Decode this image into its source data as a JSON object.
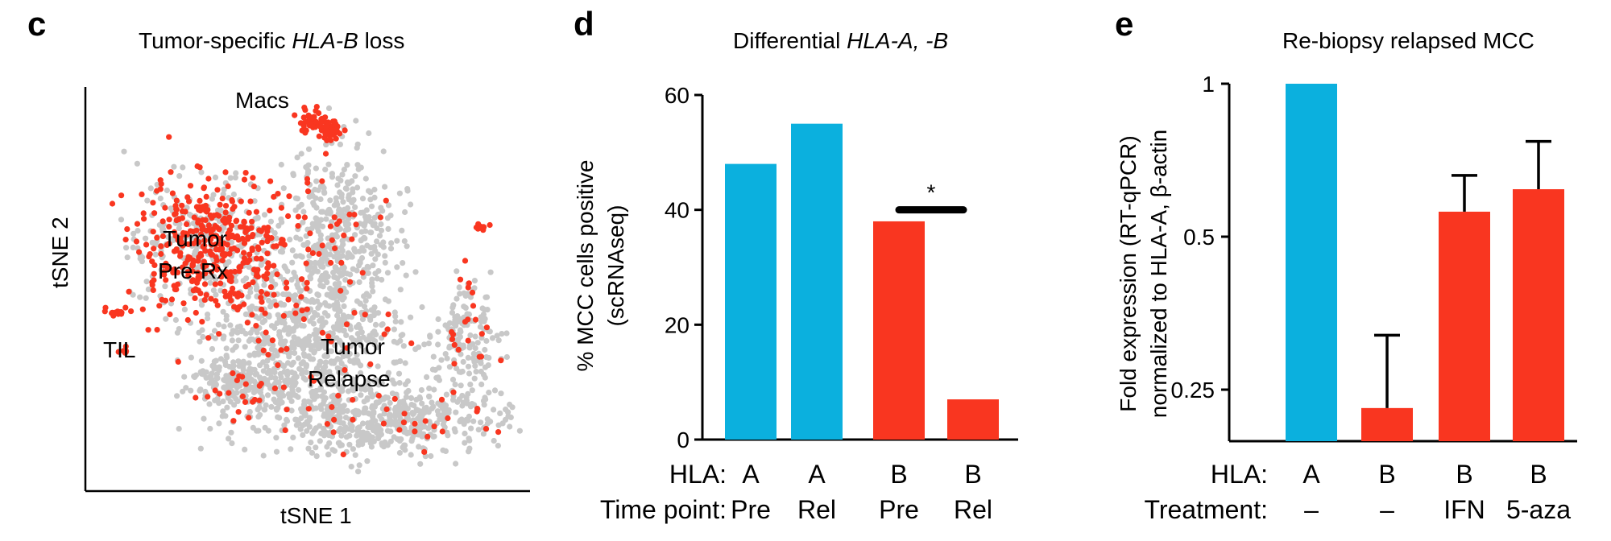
{
  "colors": {
    "blue": "#0bb0de",
    "red": "#f93620",
    "grey": "#c8c8c8",
    "axis": "#000000"
  },
  "panel_c": {
    "letter": "c",
    "title_prefix": "Tumor-specific ",
    "title_italic": "HLA-B",
    "title_suffix": " loss",
    "xlabel": "tSNE 1",
    "ylabel": "tSNE 2",
    "clusters": {
      "macs": "Macs",
      "tumor_pre_1": "Tumor",
      "tumor_pre_2": "Pre-Rx",
      "til": "TIL",
      "tumor_rel_1": "Tumor",
      "tumor_rel_2": "Relapse"
    }
  },
  "panel_d": {
    "letter": "d",
    "title_prefix": "Differential ",
    "title_italic": "HLA-A, -B",
    "ylabel_line1": "% MCC cells positive",
    "ylabel_line2": "(scRNAseq)",
    "row1_label": "HLA:",
    "row2_label": "Time point:",
    "significance": "*"
  },
  "panel_e": {
    "letter": "e",
    "title": "Re-biopsy relapsed MCC",
    "ylabel_line1": "Fold expression (RT-qPCR)",
    "ylabel_line2": "normalized to HLA-A, β-actin",
    "row1_label": "HLA:",
    "row2_label": "Treatment:"
  },
  "chart_data": [
    {
      "type": "scatter",
      "title": "Tumor-specific HLA-B loss",
      "xlabel": "tSNE 1",
      "ylabel": "tSNE 2",
      "series": [],
      "annotations": [
        "Macs",
        "Tumor Pre-Rx",
        "TIL",
        "Tumor Relapse"
      ]
    },
    {
      "type": "bar",
      "title": "Differential HLA-A, -B",
      "ylabel": "% MCC cells positive (scRNAseq)",
      "categories": [
        "A Pre",
        "A Rel",
        "B Pre",
        "B Rel"
      ],
      "hla": [
        "A",
        "A",
        "B",
        "B"
      ],
      "timepoint": [
        "Pre",
        "Rel",
        "Pre",
        "Rel"
      ],
      "values": [
        48,
        55,
        38,
        7
      ],
      "bar_colors": [
        "blue",
        "blue",
        "red",
        "red"
      ],
      "ylim": [
        0,
        60
      ],
      "yticks": [
        "0",
        "20",
        "40",
        "60"
      ],
      "significance": {
        "between": [
          "B Pre",
          "B Rel"
        ],
        "label": "*",
        "y": 40
      }
    },
    {
      "type": "bar",
      "title": "Re-biopsy relapsed MCC",
      "ylabel": "Fold expression (RT-qPCR) normalized to HLA-A, β-actin",
      "yscale": "log2",
      "categories": [
        "A –",
        "B –",
        "B IFN",
        "B 5-aza"
      ],
      "hla": [
        "A",
        "B",
        "B",
        "B"
      ],
      "treatment": [
        "–",
        "–",
        "IFN",
        "5-aza"
      ],
      "values": [
        1.0,
        0.23,
        0.56,
        0.62
      ],
      "error_upper": [
        1.0,
        0.32,
        0.66,
        0.77
      ],
      "bar_colors": [
        "blue",
        "red",
        "red",
        "red"
      ],
      "ylim": [
        0.2,
        1.0
      ],
      "yticks": [
        "0.25",
        "0.5",
        "1"
      ]
    }
  ]
}
